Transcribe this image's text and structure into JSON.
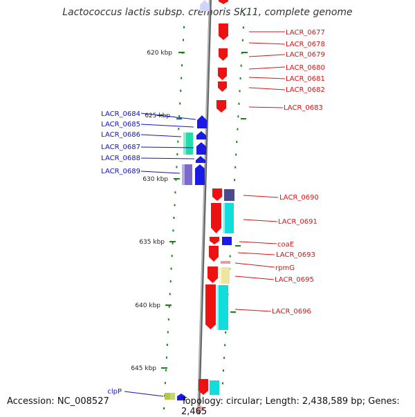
{
  "title": "Lactococcus lactis subsp. cremoris SK11, complete genome",
  "footer": {
    "accession": "Accession: NC_008527",
    "summary": "Topology: circular; Length: 2,438,589 bp; Genes: 2,465"
  },
  "ruler": [
    "620 kbp",
    "625 kbp",
    "630 kbp",
    "635 kbp",
    "640 kbp",
    "645 kbp"
  ],
  "labels": {
    "LACR_0677": "LACR_0677",
    "LACR_0678": "LACR_0678",
    "LACR_0679": "LACR_0679",
    "LACR_0680": "LACR_0680",
    "LACR_0681": "LACR_0681",
    "LACR_0682": "LACR_0682",
    "LACR_0683": "LACR_0683",
    "LACR_0684": "LACR_0684",
    "LACR_0685": "LACR_0685",
    "LACR_0686": "LACR_0686",
    "LACR_0687": "LACR_0687",
    "LACR_0688": "LACR_0688",
    "LACR_0689": "LACR_0689",
    "LACR_0690": "LACR_0690",
    "LACR_0691": "LACR_0691",
    "coaE": "coaE",
    "LACR_0693": "LACR_0693",
    "rpmG": "rpmG",
    "LACR_0695": "LACR_0695",
    "LACR_0696": "LACR_0696",
    "clpP": "clpP"
  },
  "colors": {
    "forward_gene": "#ee1111",
    "reverse_gene": "#1111ee",
    "cyan_feature": "#11dddd",
    "green_feature": "#22ddaa",
    "purple_feature": "#7a6acc",
    "navy_feature": "#4a4a8c",
    "yellow_feature": "#ece6a0",
    "pink_feature": "#ee9999",
    "tick_green": "#118811",
    "backbone": "#888888"
  }
}
